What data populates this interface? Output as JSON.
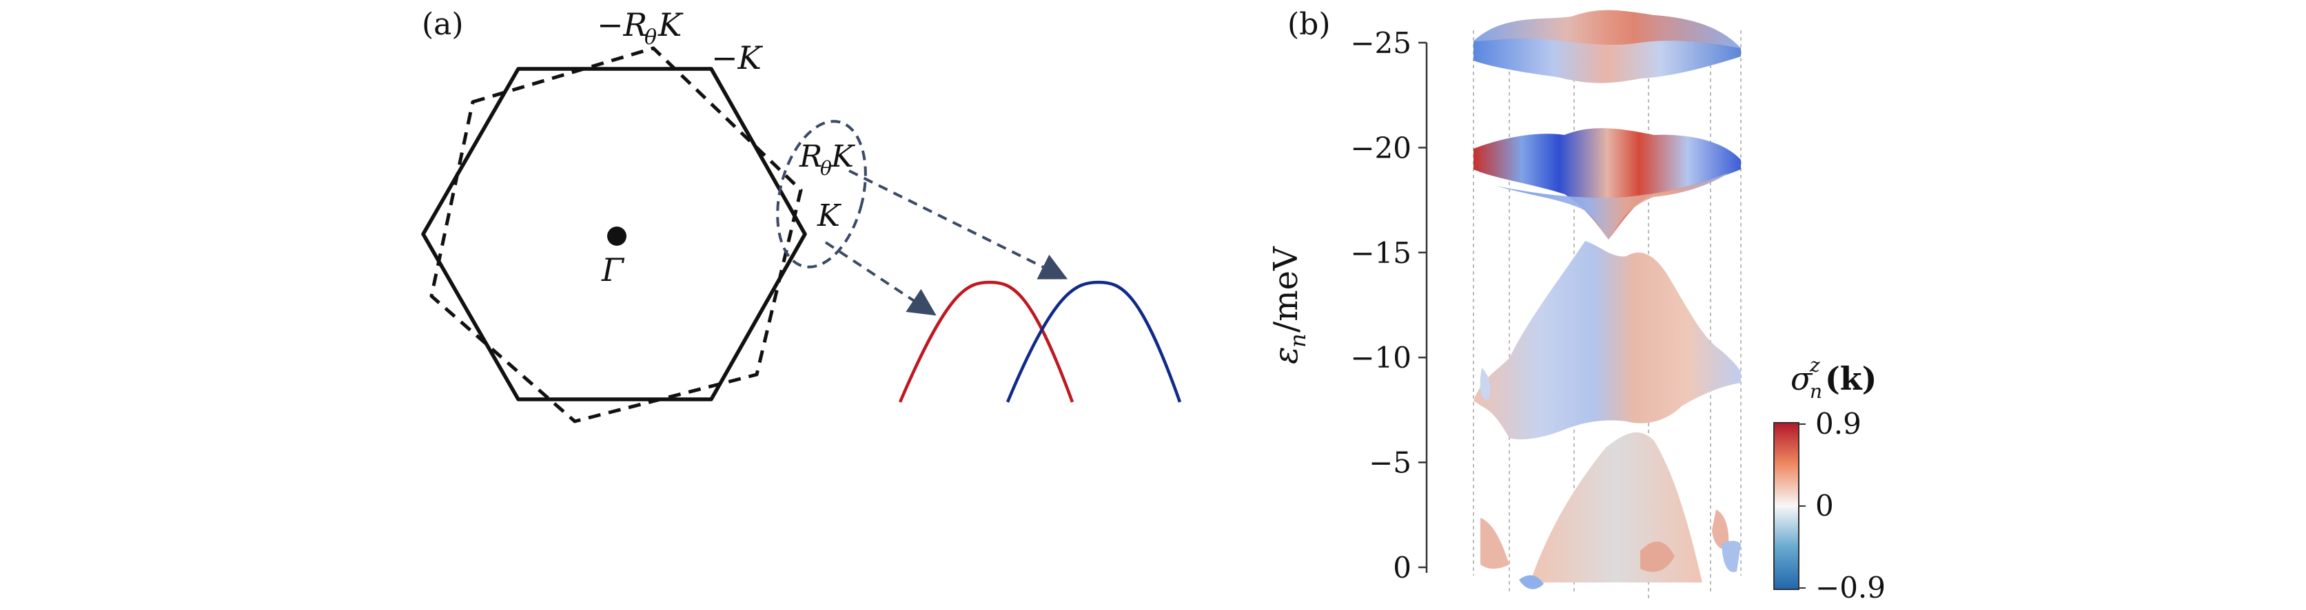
{
  "panel_a": {
    "label": "(a)",
    "gamma": "Γ",
    "labels": {
      "neg_rtk": "−R",
      "neg_rtk_sub": "θ",
      "neg_rtk_tail": "K",
      "neg_k": "−K",
      "rtk": "R",
      "rtk_sub": "θ",
      "rtk_tail": "K",
      "k": "K"
    },
    "colors": {
      "red_band": "#c01820",
      "blue_band": "#102a88",
      "arrow": "#3b4a66",
      "ellipse": "#3b4a66"
    }
  },
  "panel_b": {
    "label": "(b)",
    "ylabel_main": "ε",
    "ylabel_sub": "n",
    "ylabel_tail": "/meV",
    "colorbar": {
      "title_main": "σ",
      "title_sup": "z",
      "title_sub": "n",
      "title_arg": "(k)",
      "max": "0.9",
      "mid": "0",
      "min": "−0.9",
      "color_max": "#b2182b",
      "color_mid": "#f7f7f7",
      "color_min": "#2166ac"
    }
  },
  "chart_data": {
    "type": "area",
    "title": "",
    "xlabel": "",
    "ylabel": "εn/meV",
    "ylim": [
      -25,
      0
    ],
    "y_ticks": [
      "0",
      "−5",
      "−10",
      "−15",
      "−20",
      "−25"
    ],
    "y_tick_values": [
      0,
      -5,
      -10,
      -15,
      -20,
      -25
    ],
    "grid": false,
    "colorbar_range": [
      -0.9,
      0.9
    ]
  }
}
